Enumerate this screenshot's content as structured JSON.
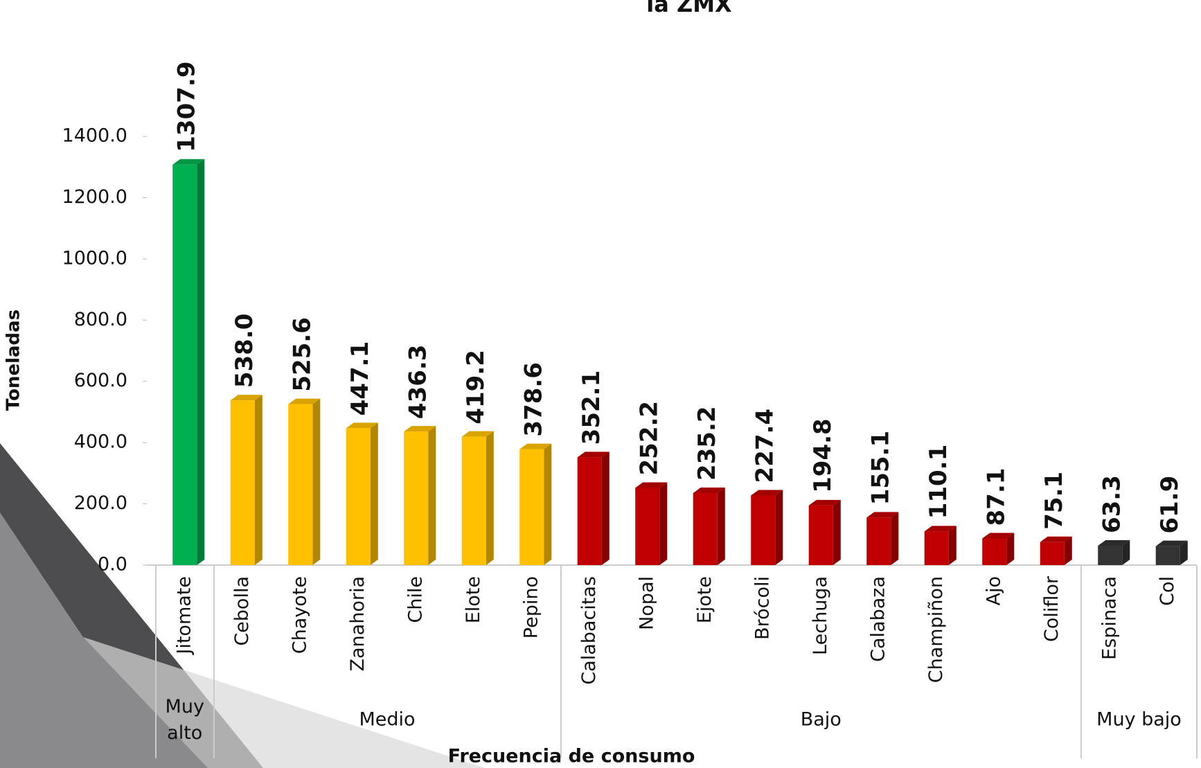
{
  "chart_data": {
    "type": "bar",
    "title": "la ZMX",
    "y_label": "Toneladas",
    "x_label": "Frecuencia de consumo",
    "categories": [
      "Jitomate",
      "Cebolla",
      "Chayote",
      "Zanahoria",
      "Chile",
      "Elote",
      "Pepino",
      "Calabacitas",
      "Nopal",
      "Ejote",
      "Brócoli",
      "Lechuga",
      "Calabaza",
      "Champiñon",
      "Ajo",
      "Coliflor",
      "Espinaca",
      "Col"
    ],
    "series": [
      {
        "name": "Muy alto",
        "color": "#00b050",
        "values": [
          1307.9,
          null,
          null,
          null,
          null,
          null,
          null,
          null,
          null,
          null,
          null,
          null,
          null,
          null,
          null,
          null,
          null,
          null
        ]
      },
      {
        "name": "Medio",
        "color": "#ffc000",
        "values": [
          null,
          538.0,
          525.6,
          447.1,
          436.3,
          419.2,
          378.6,
          null,
          null,
          null,
          null,
          null,
          null,
          null,
          null,
          null,
          null,
          null
        ],
        "value_labels": [
          null,
          "538.0",
          "525.6",
          "447.1",
          "436.3",
          "419.2",
          "378.6",
          null,
          null,
          null,
          null,
          null,
          null,
          null,
          null,
          null,
          null,
          null
        ]
      },
      {
        "name": "Bajo",
        "color": "#c00000",
        "values": [
          null,
          null,
          null,
          null,
          null,
          null,
          null,
          352.1,
          252.2,
          235.2,
          227.4,
          194.8,
          155.1,
          110.1,
          87.1,
          75.1,
          null,
          null
        ]
      },
      {
        "name": "Muy bajo",
        "color": "#333333",
        "values": [
          null,
          null,
          null,
          null,
          null,
          null,
          null,
          null,
          null,
          null,
          null,
          null,
          null,
          null,
          null,
          null,
          63.3,
          61.9
        ]
      }
    ],
    "ylim": [
      0,
      1400
    ],
    "yticks": [
      {
        "value": 0,
        "label": "0.0"
      },
      {
        "value": 200,
        "label": "200.0"
      },
      {
        "value": 400,
        "label": "400.0"
      },
      {
        "value": 600,
        "label": "600.0"
      },
      {
        "value": 800,
        "label": "800.0"
      },
      {
        "value": 1000,
        "label": "1000.0"
      },
      {
        "value": 1200,
        "label": "1200.0"
      },
      {
        "value": 1400,
        "label": "1400.0"
      }
    ],
    "grid": false
  }
}
